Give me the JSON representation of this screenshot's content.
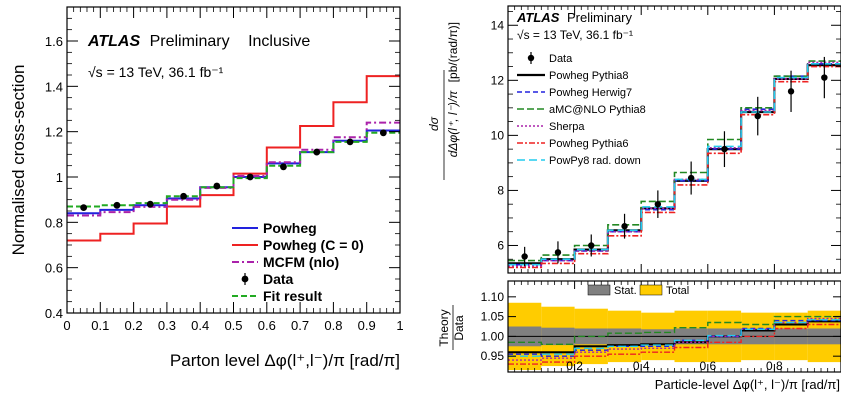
{
  "chart_data": [
    {
      "type": "line",
      "panel": "left",
      "ylabel": "Normalised cross-section",
      "xlabel": "Parton level Δφ(l⁺,l⁻)/π [rad/π]",
      "xlim": [
        0,
        1
      ],
      "ylim": [
        0.4,
        1.75
      ],
      "xticks": [
        "0",
        "0.1",
        "0.2",
        "0.3",
        "0.4",
        "0.5",
        "0.6",
        "0.7",
        "0.8",
        "0.9",
        "1"
      ],
      "yticks": [
        "0.4",
        "0.6",
        "0.8",
        "1",
        "1.2",
        "1.4",
        "1.6"
      ],
      "annotations": {
        "atlas": "ATLAS",
        "prelim": "Preliminary",
        "inclusive": "Inclusive",
        "energy": "√s = 13 TeV, 36.1 fb⁻¹"
      },
      "legend_position": "bottom-right",
      "bin_edges": [
        0,
        0.1,
        0.2,
        0.3,
        0.4,
        0.5,
        0.6,
        0.7,
        0.8,
        0.9,
        1.0
      ],
      "series": [
        {
          "name": "Powheg",
          "style": "step",
          "color": "#2222dd",
          "dash": "",
          "values": [
            0.84,
            0.855,
            0.875,
            0.905,
            0.955,
            1.0,
            1.06,
            1.11,
            1.16,
            1.205
          ]
        },
        {
          "name": "Powheg (C = 0)",
          "style": "step",
          "color": "#ee2222",
          "dash": "",
          "values": [
            0.72,
            0.75,
            0.795,
            0.87,
            0.92,
            1.015,
            1.13,
            1.225,
            1.33,
            1.445
          ]
        },
        {
          "name": "MCFM (nlo)",
          "style": "step",
          "color": "#aa22aa",
          "dash": "7 3 2 3",
          "values": [
            0.83,
            0.845,
            0.868,
            0.9,
            0.952,
            1.005,
            1.065,
            1.12,
            1.175,
            1.24
          ]
        },
        {
          "name": "Data",
          "style": "points",
          "color": "#000000",
          "values": [
            0.865,
            0.875,
            0.88,
            0.915,
            0.96,
            1.0,
            1.045,
            1.11,
            1.155,
            1.195
          ]
        },
        {
          "name": "Fit result",
          "style": "step",
          "color": "#22aa22",
          "dash": "6 3",
          "values": [
            0.87,
            0.875,
            0.885,
            0.915,
            0.955,
            0.995,
            1.05,
            1.11,
            1.155,
            1.195
          ]
        }
      ]
    },
    {
      "type": "line",
      "panel": "right-top",
      "ylabel_frac_num": "dσ",
      "ylabel_frac_den": "dΔφ(l⁺, l⁻)/π",
      "ylabel_unit": "[pb/(rad/π)]",
      "xlim": [
        0,
        1
      ],
      "ylim": [
        5.0,
        14.7
      ],
      "yticks": [
        "6",
        "8",
        "10",
        "12",
        "14"
      ],
      "annotations": {
        "atlas": "ATLAS",
        "prelim": "Preliminary",
        "energy": "√s = 13 TeV, 36.1 fb⁻¹"
      },
      "legend_position": "top-left",
      "bin_edges": [
        0,
        0.1,
        0.2,
        0.3,
        0.4,
        0.5,
        0.6,
        0.7,
        0.8,
        0.9,
        1.0
      ],
      "data": {
        "name": "Data",
        "values": [
          5.6,
          5.75,
          6.0,
          6.7,
          7.5,
          8.45,
          9.5,
          10.7,
          11.6,
          12.1
        ],
        "errors": [
          0.35,
          0.4,
          0.4,
          0.45,
          0.5,
          0.6,
          0.65,
          0.7,
          0.75,
          0.75
        ]
      },
      "series": [
        {
          "name": "Powheg Pythia8",
          "color": "#000000",
          "dash": "",
          "width": 2.2,
          "values": [
            5.35,
            5.5,
            5.85,
            6.55,
            7.35,
            8.35,
            9.5,
            10.85,
            12.05,
            12.55
          ]
        },
        {
          "name": "Powheg Herwig7",
          "color": "#2222dd",
          "dash": "5 3",
          "width": 1.6,
          "values": [
            5.3,
            5.45,
            5.8,
            6.5,
            7.3,
            8.35,
            9.5,
            10.95,
            12.15,
            12.6
          ]
        },
        {
          "name": "aMC@NLO Pythia8",
          "color": "#228822",
          "dash": "7 3",
          "width": 1.6,
          "values": [
            5.45,
            5.65,
            6.0,
            6.75,
            7.6,
            8.65,
            9.85,
            11.0,
            12.15,
            12.7
          ]
        },
        {
          "name": "Sherpa",
          "color": "#aa22aa",
          "dash": "2 2",
          "width": 1.6,
          "values": [
            5.25,
            5.45,
            5.8,
            6.5,
            7.35,
            8.4,
            9.55,
            10.9,
            12.05,
            12.65
          ]
        },
        {
          "name": "Powheg Pythia6",
          "color": "#ee2222",
          "dash": "6 2 2 2",
          "width": 1.6,
          "values": [
            5.2,
            5.35,
            5.7,
            6.35,
            7.2,
            8.2,
            9.35,
            10.75,
            11.95,
            12.5
          ]
        },
        {
          "name": "PowPy8 rad. down",
          "color": "#22ccee",
          "dash": "8 4",
          "width": 1.6,
          "values": [
            5.3,
            5.5,
            5.85,
            6.55,
            7.4,
            8.4,
            9.6,
            10.85,
            12.1,
            12.6
          ]
        }
      ]
    },
    {
      "type": "line",
      "panel": "right-ratio",
      "ylabel_num": "Theory",
      "ylabel_den": "Data",
      "xlabel": "Particle-level Δφ(l⁺, l⁻)/π [rad/π]",
      "xlim": [
        0,
        1
      ],
      "ylim": [
        0.91,
        1.14
      ],
      "yticks": [
        "0.95",
        "1.00",
        "1.05",
        "1.10"
      ],
      "xticks": [
        "0.2",
        "0.4",
        "0.6",
        "0.8"
      ],
      "legend": [
        "Stat.",
        "Total"
      ],
      "legend_colors": [
        "#808080",
        "#ffcc00"
      ],
      "bin_edges": [
        0,
        0.1,
        0.2,
        0.3,
        0.4,
        0.5,
        0.6,
        0.7,
        0.8,
        0.9,
        1.0
      ],
      "stat_band": [
        0.025,
        0.022,
        0.02,
        0.02,
        0.018,
        0.02,
        0.02,
        0.02,
        0.02,
        0.02
      ],
      "total_band": [
        0.085,
        0.075,
        0.07,
        0.065,
        0.06,
        0.065,
        0.065,
        0.06,
        0.06,
        0.065
      ],
      "series": [
        {
          "name": "Powheg Pythia8",
          "color": "#000000",
          "dash": "",
          "width": 2.0,
          "values": [
            0.96,
            0.96,
            0.975,
            0.978,
            0.98,
            0.985,
            1.0,
            1.015,
            1.03,
            1.038
          ]
        },
        {
          "name": "Powheg Herwig7",
          "color": "#2222dd",
          "dash": "5 3",
          "width": 1.4,
          "values": [
            0.955,
            0.95,
            0.965,
            0.975,
            0.975,
            0.99,
            1.0,
            1.02,
            1.04,
            1.04
          ]
        },
        {
          "name": "aMC@NLO Pythia8",
          "color": "#228822",
          "dash": "7 3",
          "width": 1.4,
          "values": [
            0.985,
            0.98,
            1.0,
            1.008,
            1.01,
            1.022,
            1.035,
            1.03,
            1.05,
            1.05
          ]
        },
        {
          "name": "Sherpa",
          "color": "#aa22aa",
          "dash": "2 2",
          "width": 1.4,
          "values": [
            0.94,
            0.945,
            0.96,
            0.968,
            0.97,
            0.985,
            1.0,
            1.018,
            1.035,
            1.045
          ]
        },
        {
          "name": "Powheg Pythia6",
          "color": "#ee2222",
          "dash": "6 2 2 2",
          "width": 1.4,
          "values": [
            0.93,
            0.935,
            0.95,
            0.955,
            0.96,
            0.972,
            0.985,
            1.0,
            1.02,
            1.03
          ]
        },
        {
          "name": "PowPy8 rad. down",
          "color": "#22ccee",
          "dash": "8 4",
          "width": 1.4,
          "values": [
            0.95,
            0.955,
            0.97,
            0.975,
            0.978,
            0.99,
            1.002,
            1.018,
            1.035,
            1.042
          ]
        }
      ]
    }
  ]
}
